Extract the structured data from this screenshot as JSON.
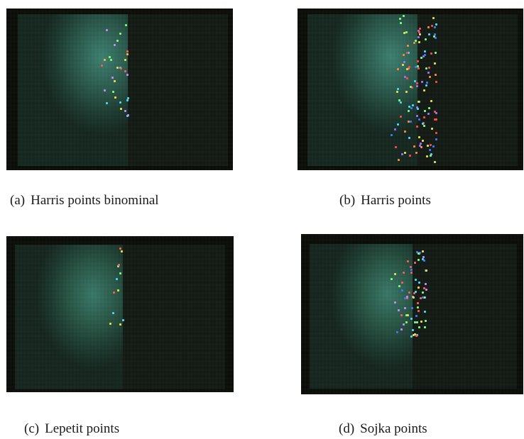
{
  "panels": [
    {
      "id": "a",
      "label": "(a)",
      "caption": "Harris points binominal",
      "point_colors": [
        "#e8e04a",
        "#ff5a5a",
        "#4ad8ff",
        "#7aff7a",
        "#c48bff",
        "#ffb04a"
      ]
    },
    {
      "id": "b",
      "label": "(b)",
      "caption": "Harris points",
      "point_colors": [
        "#e8e04a",
        "#ff4a4a",
        "#4ad8ff",
        "#7aff7a",
        "#a070ff",
        "#ff8a3a",
        "#3a7aff"
      ]
    },
    {
      "id": "c",
      "label": "(c)",
      "caption": "Lepetit points",
      "point_colors": [
        "#e8e04a",
        "#ff5a5a",
        "#7aff7a",
        "#4ad8ff"
      ]
    },
    {
      "id": "d",
      "label": "(d)",
      "caption": "Sojka points",
      "point_colors": [
        "#e8e04a",
        "#ff5a5a",
        "#4ad8ff",
        "#7aff7a",
        "#c48bff",
        "#3a7aff"
      ]
    }
  ]
}
